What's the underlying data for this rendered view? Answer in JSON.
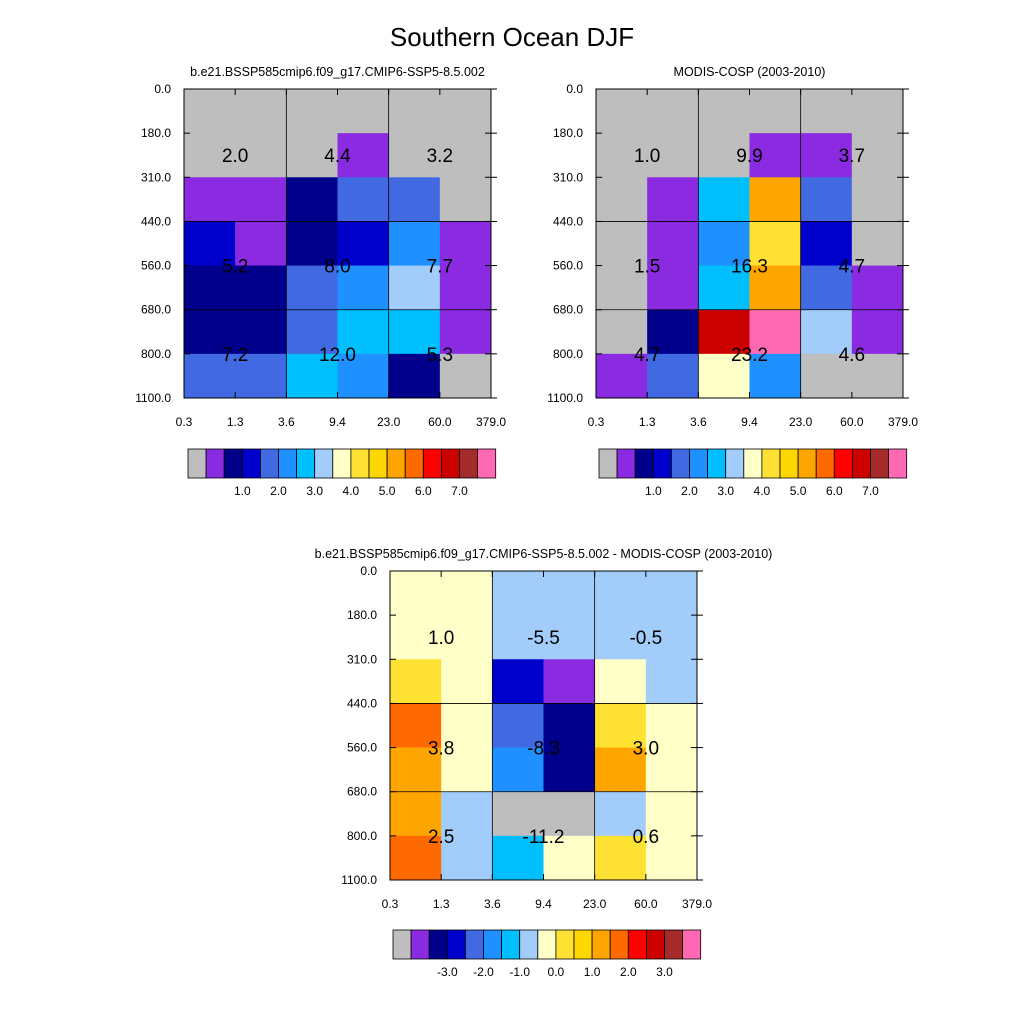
{
  "figure": {
    "title": "Southern Ocean DJF"
  },
  "chart_data": [
    {
      "type": "heatmap",
      "title": "b.e21.BSSP585cmip6.f09_g17.CMIP6-SSP5-8.5.002",
      "x_tick_labels": [
        "0.3",
        "1.3",
        "3.6",
        "9.4",
        "23.0",
        "60.0",
        "379.0"
      ],
      "y_tick_labels": [
        "0.0",
        "180.0",
        "310.0",
        "440.0",
        "560.0",
        "680.0",
        "800.0",
        "1100.0"
      ],
      "colorbar": {
        "colors": [
          "#bebebe",
          "#8a2be2",
          "#00008b",
          "#0000cd",
          "#4169e1",
          "#1e90ff",
          "#00bfff",
          "#a2cdfa",
          "#ffffc8",
          "#ffe133",
          "#ffd700",
          "#ffa500",
          "#ff6a00",
          "#ff0000",
          "#cd0000",
          "#a52a2a",
          "#ff69b4"
        ],
        "labels": [
          "1.0",
          "2.0",
          "3.0",
          "4.0",
          "5.0",
          "6.0",
          "7.0"
        ]
      },
      "cells": [
        [
          0,
          0,
          0,
          0,
          0,
          0,
          0
        ],
        [
          0,
          0,
          0,
          1,
          0,
          0,
          0
        ],
        [
          1,
          1,
          2,
          4,
          4,
          0,
          0
        ],
        [
          3,
          1,
          2,
          3,
          5,
          1,
          0
        ],
        [
          2,
          2,
          4,
          5,
          7,
          1,
          0
        ],
        [
          2,
          2,
          4,
          6,
          6,
          1,
          0
        ],
        [
          4,
          4,
          6,
          5,
          2,
          0,
          0
        ]
      ],
      "box_totals": [
        [
          "2.0",
          "4.4",
          "3.2"
        ],
        [
          "5.2",
          "8.0",
          "7.7"
        ],
        [
          "7.2",
          "12.0",
          "5.3"
        ]
      ]
    },
    {
      "type": "heatmap",
      "title": "MODIS-COSP (2003-2010)",
      "x_tick_labels": [
        "0.3",
        "1.3",
        "3.6",
        "9.4",
        "23.0",
        "60.0",
        "379.0"
      ],
      "y_tick_labels": [
        "0.0",
        "180.0",
        "310.0",
        "440.0",
        "560.0",
        "680.0",
        "800.0",
        "1100.0"
      ],
      "colorbar": {
        "colors": [
          "#bebebe",
          "#8a2be2",
          "#00008b",
          "#0000cd",
          "#4169e1",
          "#1e90ff",
          "#00bfff",
          "#a2cdfa",
          "#ffffc8",
          "#ffe133",
          "#ffd700",
          "#ffa500",
          "#ff6a00",
          "#ff0000",
          "#cd0000",
          "#a52a2a",
          "#ff69b4"
        ],
        "labels": [
          "1.0",
          "2.0",
          "3.0",
          "4.0",
          "5.0",
          "6.0",
          "7.0"
        ]
      },
      "cells": [
        [
          0,
          0,
          0,
          0,
          0,
          0,
          0
        ],
        [
          0,
          0,
          0,
          1,
          1,
          0,
          0
        ],
        [
          0,
          1,
          6,
          11,
          4,
          0,
          0
        ],
        [
          0,
          1,
          5,
          9,
          3,
          0,
          0
        ],
        [
          0,
          1,
          6,
          11,
          4,
          1,
          0
        ],
        [
          0,
          2,
          14,
          16,
          7,
          1,
          0
        ],
        [
          1,
          4,
          8,
          5,
          0,
          0,
          0
        ]
      ],
      "box_totals": [
        [
          "1.0",
          "9.9",
          "3.7"
        ],
        [
          "1.5",
          "16.3",
          "4.7"
        ],
        [
          "4.7",
          "23.2",
          "4.6"
        ]
      ]
    },
    {
      "type": "heatmap",
      "title": "b.e21.BSSP585cmip6.f09_g17.CMIP6-SSP5-8.5.002 - MODIS-COSP (2003-2010)",
      "x_tick_labels": [
        "0.3",
        "1.3",
        "3.6",
        "9.4",
        "23.0",
        "60.0",
        "379.0"
      ],
      "y_tick_labels": [
        "0.0",
        "180.0",
        "310.0",
        "440.0",
        "560.0",
        "680.0",
        "800.0",
        "1100.0"
      ],
      "colorbar": {
        "colors": [
          "#bebebe",
          "#8a2be2",
          "#00008b",
          "#0000cd",
          "#4169e1",
          "#1e90ff",
          "#00bfff",
          "#a2cdfa",
          "#ffffc8",
          "#ffe133",
          "#ffd700",
          "#ffa500",
          "#ff6a00",
          "#ff0000",
          "#cd0000",
          "#a52a2a",
          "#ff69b4"
        ],
        "labels": [
          "-3.0",
          "-2.0",
          "-1.0",
          "0.0",
          "1.0",
          "2.0",
          "3.0"
        ]
      },
      "cells": [
        [
          8,
          8,
          7,
          7,
          7,
          7,
          0
        ],
        [
          8,
          8,
          7,
          7,
          7,
          7,
          0
        ],
        [
          9,
          8,
          3,
          1,
          8,
          7,
          0
        ],
        [
          12,
          8,
          4,
          2,
          9,
          8,
          0
        ],
        [
          11,
          8,
          5,
          2,
          11,
          8,
          0
        ],
        [
          11,
          7,
          0,
          0,
          7,
          8,
          0
        ],
        [
          12,
          7,
          6,
          8,
          9,
          8,
          0
        ]
      ],
      "box_totals": [
        [
          "1.0",
          "-5.5",
          "-0.5"
        ],
        [
          "3.8",
          "-8.3",
          "3.0"
        ],
        [
          "2.5",
          "-11.2",
          "0.6"
        ]
      ]
    }
  ]
}
